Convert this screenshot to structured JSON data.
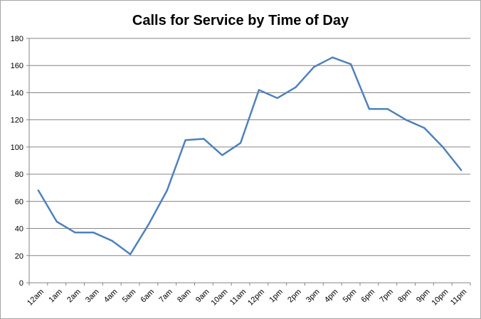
{
  "chart_data": {
    "type": "line",
    "title": "Calls for Service by Time of Day",
    "xlabel": "",
    "ylabel": "",
    "categories": [
      "12am",
      "1am",
      "2am",
      "3am",
      "4am",
      "5am",
      "6am",
      "7am",
      "8am",
      "9am",
      "10am",
      "11am",
      "12pm",
      "1pm",
      "2pm",
      "3pm",
      "4pm",
      "5pm",
      "6pm",
      "7pm",
      "8pm",
      "9pm",
      "10pm",
      "11pm"
    ],
    "series": [
      {
        "values": [
          68,
          45,
          37,
          37,
          31,
          21,
          43,
          68,
          105,
          106,
          94,
          103,
          142,
          136,
          144,
          159,
          166,
          161,
          128,
          128,
          120,
          114,
          100,
          83
        ]
      }
    ],
    "ylim": [
      0,
      180
    ],
    "yticks": [
      "0",
      "20",
      "40",
      "60",
      "80",
      "100",
      "120",
      "140",
      "160",
      "180"
    ],
    "grid": "horizontal",
    "legend": "none",
    "colors": {
      "line": "#4f81bd",
      "grid": "#868686",
      "axis": "#868686"
    }
  }
}
